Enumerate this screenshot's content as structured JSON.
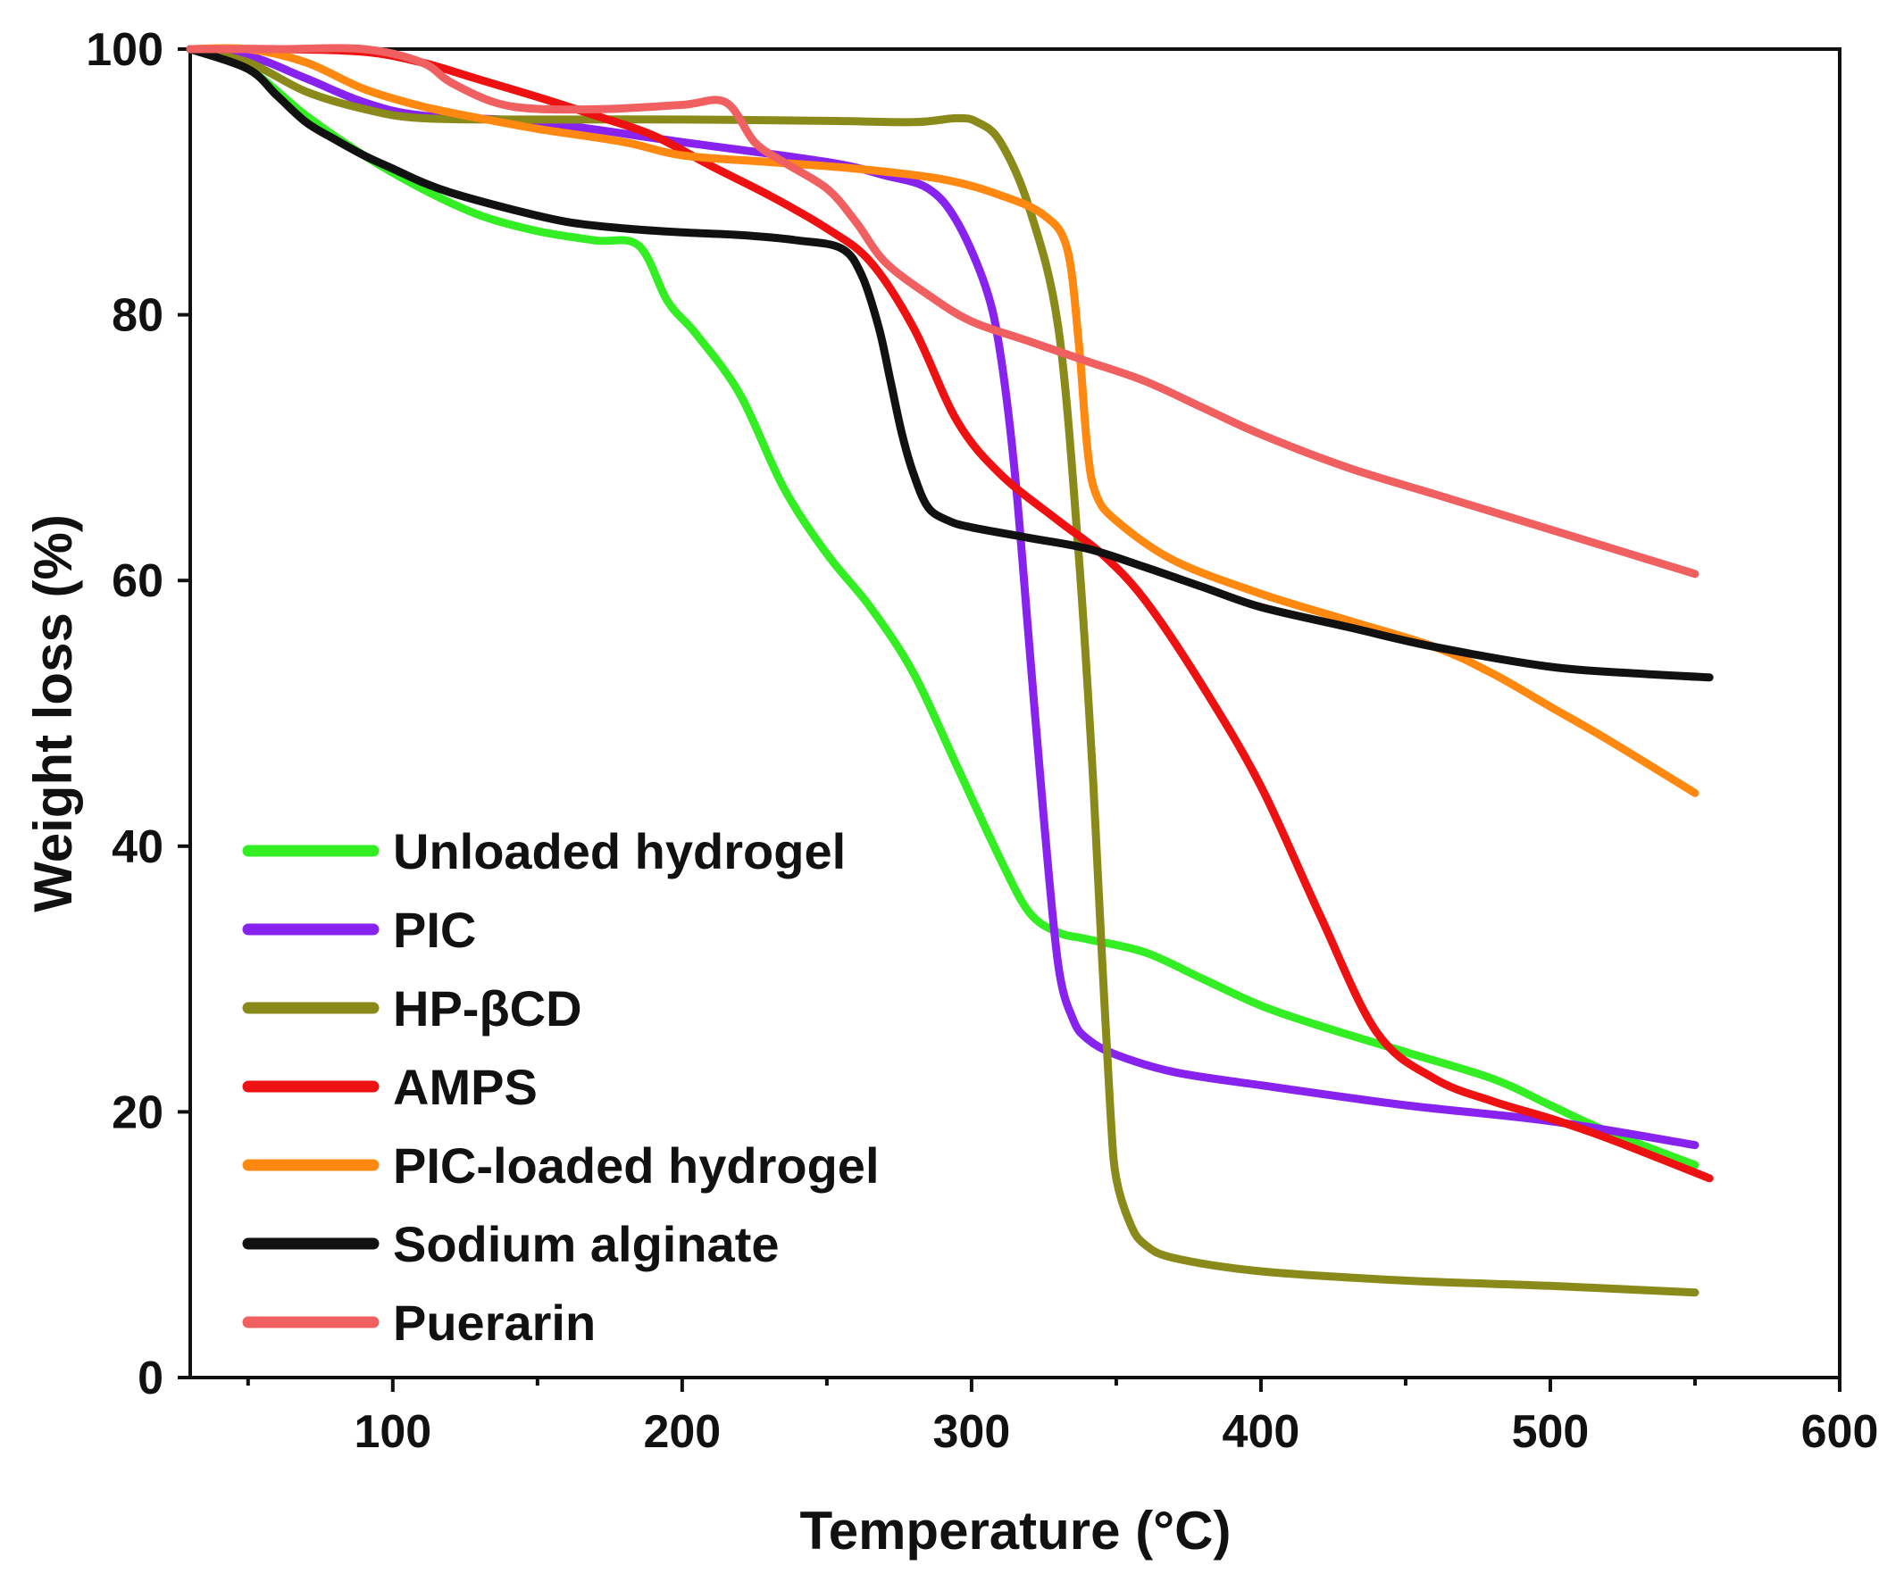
{
  "chart_data": {
    "type": "line",
    "xlabel": "Temperature (°C)",
    "ylabel": "Weight  loss (%)",
    "xlim": [
      30,
      600
    ],
    "ylim": [
      0,
      100
    ],
    "xticks": [
      100,
      200,
      300,
      400,
      500,
      600
    ],
    "yticks": [
      0,
      20,
      40,
      60,
      80,
      100
    ],
    "grid": false,
    "legend_position": "bottom-left",
    "series": [
      {
        "name": "Unloaded hydrogel",
        "color": "#33ee22",
        "x": [
          30,
          50,
          70,
          90,
          110,
          130,
          150,
          170,
          185,
          195,
          205,
          220,
          235,
          250,
          265,
          280,
          295,
          310,
          320,
          330,
          340,
          360,
          380,
          400,
          420,
          450,
          480,
          500,
          520,
          550
        ],
        "y": [
          100,
          98.5,
          95,
          92,
          89.5,
          87.5,
          86.3,
          85.6,
          85.2,
          81,
          78.5,
          74,
          67,
          62,
          58,
          53,
          46,
          39,
          35,
          33.5,
          33,
          32,
          30,
          28,
          26.5,
          24.5,
          22.5,
          20.5,
          18.5,
          16
        ]
      },
      {
        "name": "PIC",
        "color": "#8822ee",
        "x": [
          30,
          50,
          70,
          90,
          110,
          150,
          200,
          250,
          270,
          285,
          295,
          305,
          310,
          315,
          320,
          325,
          330,
          335,
          340,
          350,
          370,
          400,
          450,
          500,
          550
        ],
        "y": [
          100,
          99.5,
          97.8,
          96,
          95,
          94.5,
          93,
          91.5,
          90.5,
          89.5,
          87,
          82,
          77,
          68,
          55,
          42,
          31,
          27,
          25.5,
          24.3,
          23,
          22,
          20.5,
          19.3,
          17.5
        ]
      },
      {
        "name": "HP-βCD",
        "color": "#8a8a1a",
        "x": [
          30,
          50,
          70,
          90,
          110,
          150,
          200,
          250,
          280,
          295,
          302,
          310,
          320,
          330,
          337,
          342,
          345,
          348,
          350,
          355,
          360,
          370,
          400,
          450,
          500,
          550
        ],
        "y": [
          100,
          99,
          96.8,
          95.5,
          94.8,
          94.7,
          94.7,
          94.6,
          94.5,
          94.8,
          94.5,
          93,
          88,
          79,
          62,
          45,
          32,
          20,
          15,
          11.5,
          10,
          9,
          8,
          7.3,
          6.9,
          6.4
        ]
      },
      {
        "name": "AMPS",
        "color": "#ee1111",
        "x": [
          30,
          60,
          90,
          110,
          130,
          150,
          170,
          190,
          210,
          230,
          250,
          265,
          280,
          295,
          310,
          330,
          345,
          360,
          380,
          400,
          420,
          440,
          460,
          480,
          500,
          520,
          555
        ],
        "y": [
          100,
          100,
          99.8,
          99,
          97.7,
          96.4,
          95,
          93.5,
          91.2,
          89,
          86.5,
          84,
          79,
          72,
          68,
          64.5,
          62,
          58.5,
          52,
          44.5,
          35,
          26,
          22.5,
          20.8,
          19.5,
          18,
          15
        ]
      },
      {
        "name": "PIC-loaded hydrogel",
        "color": "#ff8811",
        "x": [
          30,
          50,
          70,
          90,
          110,
          130,
          150,
          180,
          200,
          230,
          260,
          290,
          310,
          325,
          333,
          337,
          340,
          343,
          350,
          370,
          400,
          430,
          460,
          480,
          500,
          520,
          550
        ],
        "y": [
          100,
          100,
          99,
          97,
          95.7,
          94.8,
          94,
          93,
          92,
          91.5,
          91,
          90.2,
          89,
          87.5,
          85,
          78,
          70,
          66.5,
          64.5,
          61.5,
          59,
          57,
          55,
          53,
          50.5,
          48,
          44
        ]
      },
      {
        "name": "Sodium alginate",
        "color": "#111111",
        "x": [
          30,
          50,
          60,
          70,
          80,
          90,
          100,
          110,
          120,
          140,
          160,
          180,
          200,
          220,
          240,
          255,
          262,
          268,
          272,
          276,
          280,
          285,
          292,
          300,
          320,
          340,
          360,
          380,
          400,
          430,
          460,
          500,
          530,
          555
        ],
        "y": [
          100,
          98.5,
          96.5,
          94.5,
          93.2,
          92,
          91,
          90,
          89.2,
          88,
          87,
          86.5,
          86.2,
          86,
          85.6,
          85,
          83,
          79,
          75,
          71,
          68,
          65.5,
          64.5,
          64,
          63.2,
          62.4,
          61,
          59.5,
          58,
          56.5,
          55,
          53.5,
          53,
          52.7
        ]
      },
      {
        "name": "Puerarin",
        "color": "#f06060",
        "x": [
          30,
          60,
          90,
          110,
          120,
          135,
          150,
          175,
          200,
          215,
          225,
          235,
          250,
          260,
          270,
          285,
          300,
          320,
          340,
          360,
          380,
          400,
          430,
          460,
          490,
          520,
          550
        ],
        "y": [
          100,
          100,
          100,
          99,
          97.5,
          96,
          95.5,
          95.5,
          95.8,
          96,
          93,
          91.5,
          89.5,
          87,
          84,
          81.5,
          79.5,
          78,
          76.5,
          75,
          73,
          71,
          68.5,
          66.5,
          64.5,
          62.5,
          60.5
        ]
      }
    ]
  }
}
